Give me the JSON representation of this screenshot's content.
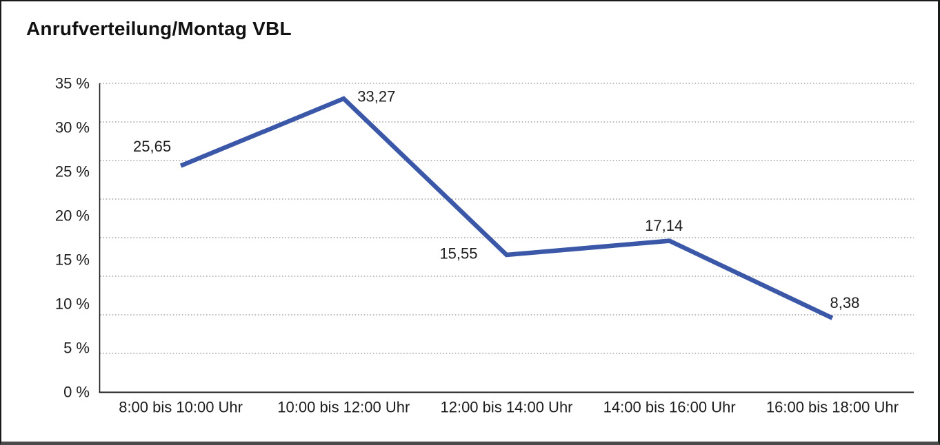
{
  "chart_data": {
    "type": "line",
    "title": "Anrufverteilung/Montag VBL",
    "categories": [
      "8:00 bis 10:00 Uhr",
      "10:00 bis 12:00 Uhr",
      "12:00 bis 14:00 Uhr",
      "14:00 bis 16:00 Uhr",
      "16:00 bis 18:00 Uhr"
    ],
    "values": [
      25.65,
      33.27,
      15.55,
      17.14,
      8.38
    ],
    "point_labels": [
      "25,65",
      "33,27",
      "15,55",
      "17,14",
      "8,38"
    ],
    "point_label_positions": [
      "above-left",
      "right",
      "left",
      "above",
      "above-right"
    ],
    "xlabel": "",
    "ylabel": "",
    "ylim": [
      0,
      35
    ],
    "y_ticks": [
      "0 %",
      "5 %",
      "10 %",
      "15 %",
      "20 %",
      "25 %",
      "30 %",
      "35 %"
    ],
    "grid": "horizontal-dotted",
    "gridline_divisions": 8,
    "legend": "none",
    "colors": {
      "line": "#3A57A8",
      "axis": "#1a1a1a",
      "grid": "#777777",
      "text": "#1c1c1c",
      "title": "#111111",
      "background": "#ffffff",
      "frame_border": "#1a1a1a",
      "frame_bottom": "#4a4a4a"
    }
  }
}
